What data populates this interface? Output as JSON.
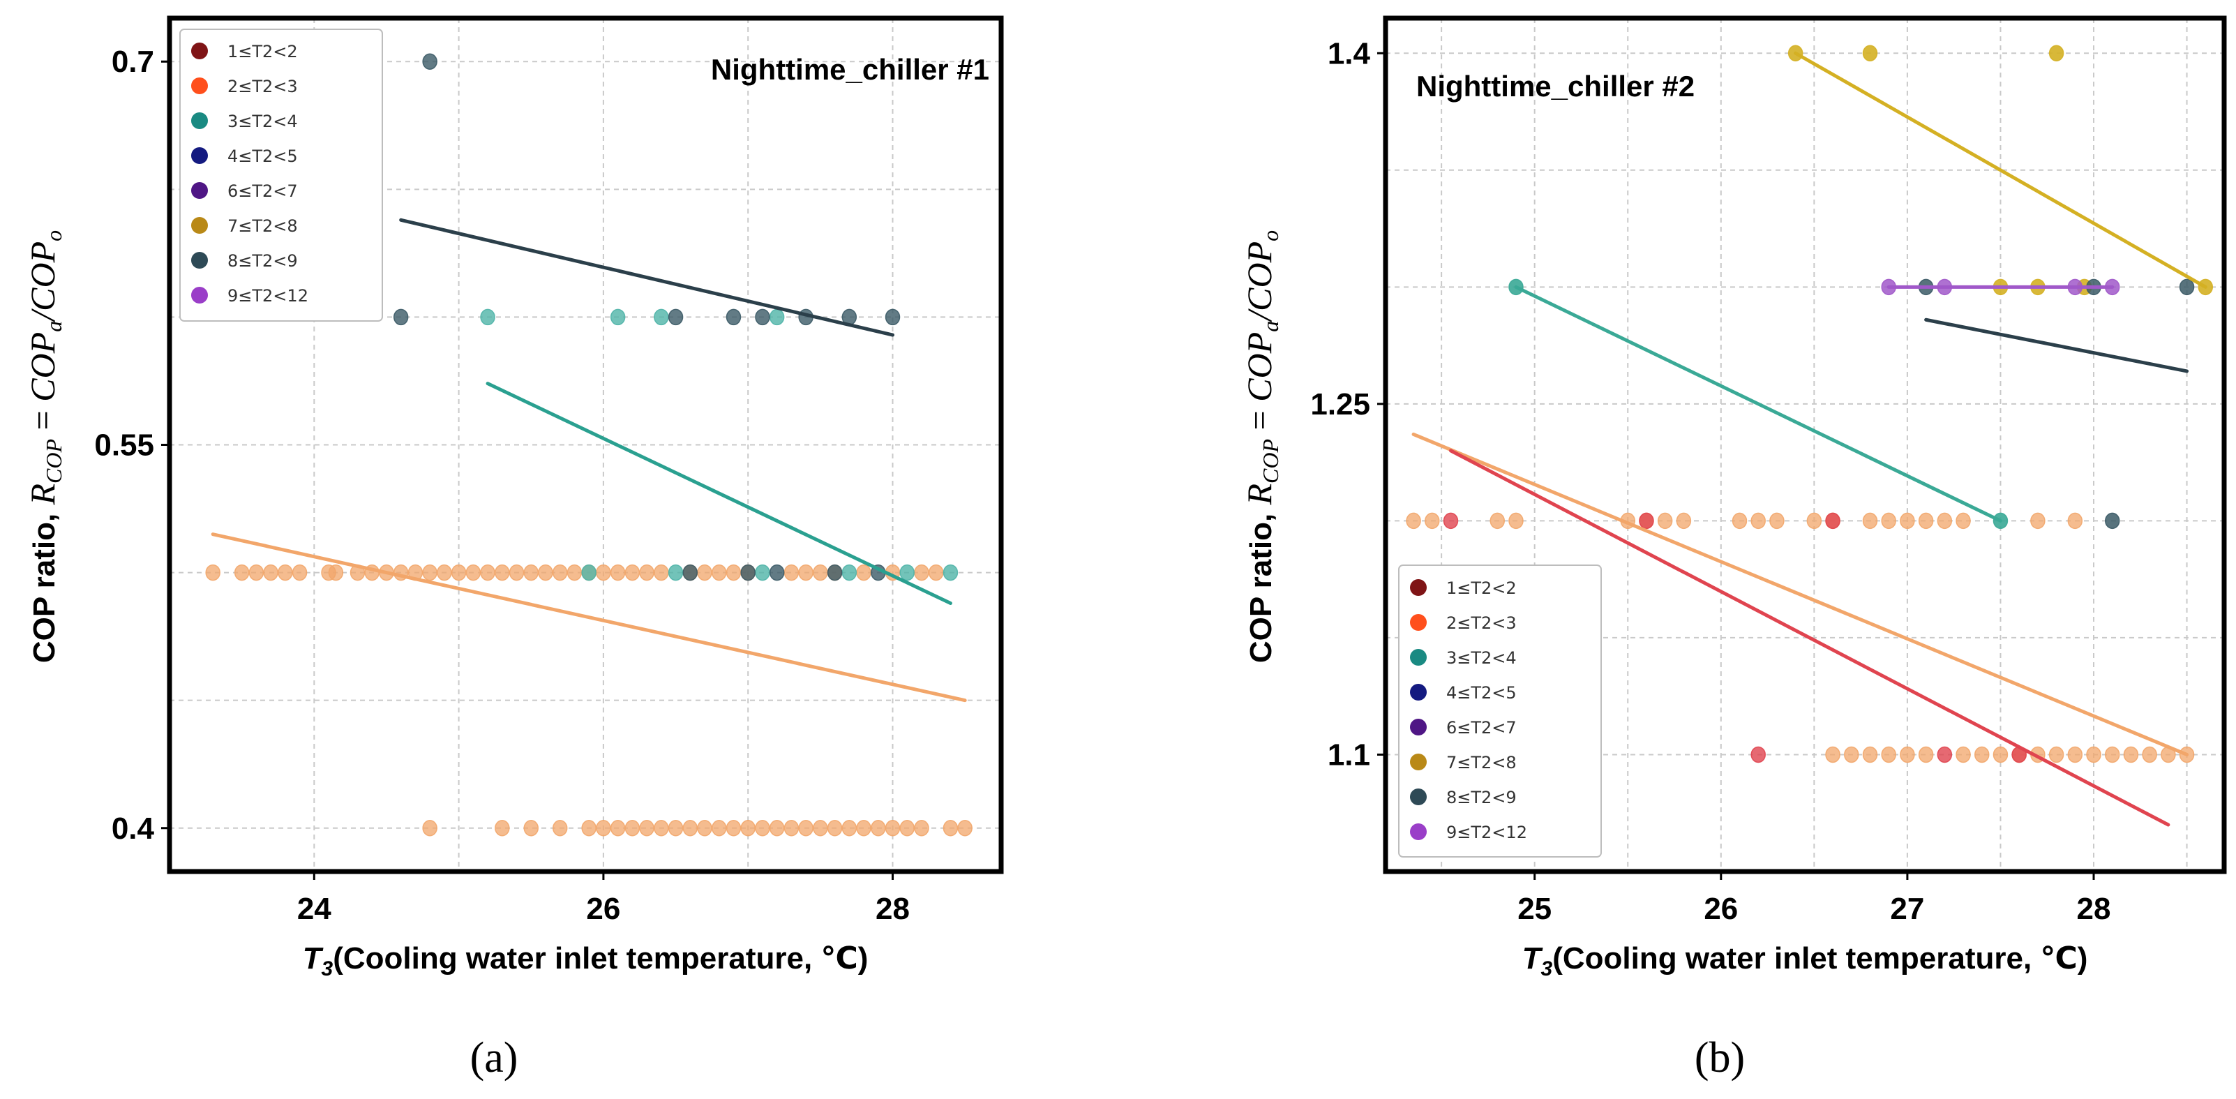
{
  "chart_data": [
    {
      "type": "scatter",
      "panel_label": "(a)",
      "title": "Nighttime_chiller #1",
      "xlabel": "T3(Cooling water inlet temperature, ℃)",
      "xlabel_italic": "T",
      "xlabel_sub": "3",
      "xlabel_rest": "(Cooling water inlet temperature, ℃)",
      "ylabel": "COP ratio, R_COP = COP_a/COP_o",
      "ylabel_prefix": "COP ratio, ",
      "ylabel_R": "R",
      "ylabel_Rsub": "COP",
      "ylabel_eq": " = ",
      "ylabel_A": "COP",
      "ylabel_Asub": "a",
      "ylabel_slash": "/",
      "ylabel_B": "COP",
      "ylabel_Bsub": "o",
      "xlim": [
        23.0,
        28.75
      ],
      "ylim": [
        0.383,
        0.717
      ],
      "xticks": [
        24,
        26,
        28
      ],
      "xtick_labels": [
        "24",
        "26",
        "28"
      ],
      "xgrid": [
        24,
        25,
        26,
        27,
        28
      ],
      "yticks": [
        0.4,
        0.55,
        0.7
      ],
      "ytick_labels": [
        "0.4",
        "0.55",
        "0.7"
      ],
      "ygrid": [
        0.4,
        0.45,
        0.5,
        0.55,
        0.6,
        0.65,
        0.7
      ],
      "legend_position": "top-left",
      "legend": [
        {
          "label": "1≤T2<2",
          "color": "#7f1416"
        },
        {
          "label": "2≤T2<3",
          "color": "#ff4f1c"
        },
        {
          "label": "3≤T2<4",
          "color": "#1a8a82"
        },
        {
          "label": "4≤T2<5",
          "color": "#141a80"
        },
        {
          "label": "6≤T2<7",
          "color": "#4f1685"
        },
        {
          "label": "7≤T2<8",
          "color": "#b98917"
        },
        {
          "label": "8≤T2<9",
          "color": "#2e4a56"
        },
        {
          "label": "9≤T2<12",
          "color": "#9a3ec8"
        }
      ],
      "series": [
        {
          "name": "2≤T2<3",
          "color": "#f2a66a",
          "alpha": 0.75,
          "points": [
            [
              23.3,
              0.5
            ],
            [
              23.5,
              0.5
            ],
            [
              23.6,
              0.5
            ],
            [
              23.7,
              0.5
            ],
            [
              23.8,
              0.5
            ],
            [
              23.9,
              0.5
            ],
            [
              24.1,
              0.5
            ],
            [
              24.15,
              0.5
            ],
            [
              24.3,
              0.5
            ],
            [
              24.4,
              0.5
            ],
            [
              24.5,
              0.5
            ],
            [
              24.6,
              0.5
            ],
            [
              24.7,
              0.5
            ],
            [
              24.8,
              0.5
            ],
            [
              24.9,
              0.5
            ],
            [
              25.0,
              0.5
            ],
            [
              25.1,
              0.5
            ],
            [
              25.2,
              0.5
            ],
            [
              25.3,
              0.5
            ],
            [
              25.4,
              0.5
            ],
            [
              25.5,
              0.5
            ],
            [
              25.6,
              0.5
            ],
            [
              25.7,
              0.5
            ],
            [
              25.8,
              0.5
            ],
            [
              25.9,
              0.5
            ],
            [
              26.0,
              0.5
            ],
            [
              26.1,
              0.5
            ],
            [
              26.2,
              0.5
            ],
            [
              26.3,
              0.5
            ],
            [
              26.4,
              0.5
            ],
            [
              26.6,
              0.5
            ],
            [
              26.7,
              0.5
            ],
            [
              26.8,
              0.5
            ],
            [
              26.9,
              0.5
            ],
            [
              27.0,
              0.5
            ],
            [
              27.3,
              0.5
            ],
            [
              27.4,
              0.5
            ],
            [
              27.5,
              0.5
            ],
            [
              27.6,
              0.5
            ],
            [
              27.8,
              0.5
            ],
            [
              28.0,
              0.5
            ],
            [
              28.2,
              0.5
            ],
            [
              28.3,
              0.5
            ],
            [
              24.8,
              0.4
            ],
            [
              25.3,
              0.4
            ],
            [
              25.5,
              0.4
            ],
            [
              25.7,
              0.4
            ],
            [
              25.9,
              0.4
            ],
            [
              26.0,
              0.4
            ],
            [
              26.1,
              0.4
            ],
            [
              26.2,
              0.4
            ],
            [
              26.3,
              0.4
            ],
            [
              26.4,
              0.4
            ],
            [
              26.5,
              0.4
            ],
            [
              26.6,
              0.4
            ],
            [
              26.7,
              0.4
            ],
            [
              26.8,
              0.4
            ],
            [
              26.9,
              0.4
            ],
            [
              27.0,
              0.4
            ],
            [
              27.1,
              0.4
            ],
            [
              27.2,
              0.4
            ],
            [
              27.3,
              0.4
            ],
            [
              27.4,
              0.4
            ],
            [
              27.5,
              0.4
            ],
            [
              27.6,
              0.4
            ],
            [
              27.7,
              0.4
            ],
            [
              27.8,
              0.4
            ],
            [
              27.9,
              0.4
            ],
            [
              28.0,
              0.4
            ],
            [
              28.1,
              0.4
            ],
            [
              28.2,
              0.4
            ],
            [
              28.4,
              0.4
            ],
            [
              28.5,
              0.4
            ]
          ]
        },
        {
          "name": "3≤T2<4",
          "color": "#4fb4a8",
          "alpha": 0.8,
          "points": [
            [
              25.2,
              0.6
            ],
            [
              26.1,
              0.6
            ],
            [
              26.4,
              0.6
            ],
            [
              27.2,
              0.6
            ],
            [
              25.9,
              0.5
            ],
            [
              26.5,
              0.5
            ],
            [
              27.1,
              0.5
            ],
            [
              27.7,
              0.5
            ],
            [
              28.1,
              0.5
            ],
            [
              28.4,
              0.5
            ]
          ]
        },
        {
          "name": "8≤T2<9",
          "color": "#3b5a66",
          "alpha": 0.8,
          "points": [
            [
              24.8,
              0.7
            ],
            [
              24.6,
              0.6
            ],
            [
              26.5,
              0.6
            ],
            [
              26.9,
              0.6
            ],
            [
              27.1,
              0.6
            ],
            [
              27.4,
              0.6
            ],
            [
              27.7,
              0.6
            ],
            [
              28.0,
              0.6
            ],
            [
              26.6,
              0.5
            ],
            [
              27.0,
              0.5
            ],
            [
              27.2,
              0.5
            ],
            [
              27.6,
              0.5
            ],
            [
              27.9,
              0.5
            ]
          ]
        }
      ],
      "fit_lines": [
        {
          "name": "2≤T2<3 fit",
          "color": "#f2a66a",
          "x": [
            23.3,
            28.5
          ],
          "y": [
            0.515,
            0.45
          ]
        },
        {
          "name": "3≤T2<4 fit",
          "color": "#2aa090",
          "x": [
            25.2,
            28.4
          ],
          "y": [
            0.574,
            0.488
          ]
        },
        {
          "name": "8≤T2<9 fit",
          "color": "#2b3f4a",
          "x": [
            24.6,
            28.0
          ],
          "y": [
            0.638,
            0.593
          ]
        }
      ]
    },
    {
      "type": "scatter",
      "panel_label": "(b)",
      "title": "Nighttime_chiller #2",
      "xlabel": "T3(Cooling water inlet temperature, ℃)",
      "xlabel_italic": "T",
      "xlabel_sub": "3",
      "xlabel_rest": "(Cooling water inlet temperature, ℃)",
      "ylabel": "COP ratio, R_COP = COP_a/COP_o",
      "ylabel_prefix": "COP ratio, ",
      "ylabel_R": "R",
      "ylabel_Rsub": "COP",
      "ylabel_eq": " = ",
      "ylabel_A": "COP",
      "ylabel_Asub": "a",
      "ylabel_slash": "/",
      "ylabel_B": "COP",
      "ylabel_Bsub": "o",
      "xlim": [
        24.2,
        28.7
      ],
      "ylim": [
        1.05,
        1.415
      ],
      "xticks": [
        25,
        26,
        27,
        28
      ],
      "xtick_labels": [
        "25",
        "26",
        "27",
        "28"
      ],
      "xgrid": [
        24.5,
        25,
        25.5,
        26,
        26.5,
        27,
        27.5,
        28,
        28.5
      ],
      "yticks": [
        1.1,
        1.25,
        1.4
      ],
      "ytick_labels": [
        "1.1",
        "1.25",
        "1.4"
      ],
      "ygrid": [
        1.1,
        1.15,
        1.2,
        1.25,
        1.3,
        1.35,
        1.4
      ],
      "legend_position": "bottom-left",
      "legend": [
        {
          "label": "1≤T2<2",
          "color": "#7f1416"
        },
        {
          "label": "2≤T2<3",
          "color": "#ff4f1c"
        },
        {
          "label": "3≤T2<4",
          "color": "#1a8a82"
        },
        {
          "label": "4≤T2<5",
          "color": "#141a80"
        },
        {
          "label": "6≤T2<7",
          "color": "#4f1685"
        },
        {
          "label": "7≤T2<8",
          "color": "#b98917"
        },
        {
          "label": "8≤T2<9",
          "color": "#2e4a56"
        },
        {
          "label": "9≤T2<12",
          "color": "#9a3ec8"
        }
      ],
      "series": [
        {
          "name": "2≤T2<3",
          "color": "#f2a66a",
          "alpha": 0.75,
          "points": [
            [
              24.35,
              1.2
            ],
            [
              24.45,
              1.2
            ],
            [
              24.8,
              1.2
            ],
            [
              24.9,
              1.2
            ],
            [
              25.5,
              1.2
            ],
            [
              25.6,
              1.2
            ],
            [
              25.7,
              1.2
            ],
            [
              25.8,
              1.2
            ],
            [
              26.1,
              1.2
            ],
            [
              26.2,
              1.2
            ],
            [
              26.3,
              1.2
            ],
            [
              26.5,
              1.2
            ],
            [
              26.6,
              1.2
            ],
            [
              26.8,
              1.2
            ],
            [
              26.9,
              1.2
            ],
            [
              27.0,
              1.2
            ],
            [
              27.1,
              1.2
            ],
            [
              27.2,
              1.2
            ],
            [
              27.3,
              1.2
            ],
            [
              27.7,
              1.2
            ],
            [
              27.9,
              1.2
            ],
            [
              26.6,
              1.1
            ],
            [
              26.7,
              1.1
            ],
            [
              26.8,
              1.1
            ],
            [
              26.9,
              1.1
            ],
            [
              27.0,
              1.1
            ],
            [
              27.1,
              1.1
            ],
            [
              27.3,
              1.1
            ],
            [
              27.4,
              1.1
            ],
            [
              27.5,
              1.1
            ],
            [
              27.6,
              1.1
            ],
            [
              27.7,
              1.1
            ],
            [
              27.8,
              1.1
            ],
            [
              27.9,
              1.1
            ],
            [
              28.0,
              1.1
            ],
            [
              28.1,
              1.1
            ],
            [
              28.2,
              1.1
            ],
            [
              28.3,
              1.1
            ],
            [
              28.4,
              1.1
            ],
            [
              28.5,
              1.1
            ]
          ]
        },
        {
          "name": "1≤T2<2",
          "color": "#e0444f",
          "alpha": 0.8,
          "points": [
            [
              24.55,
              1.2
            ],
            [
              25.6,
              1.2
            ],
            [
              26.2,
              1.1
            ],
            [
              26.6,
              1.2
            ],
            [
              27.2,
              1.1
            ],
            [
              27.6,
              1.1
            ]
          ]
        },
        {
          "name": "3≤T2<4",
          "color": "#3aa996",
          "alpha": 0.9,
          "points": [
            [
              24.9,
              1.3
            ],
            [
              27.5,
              1.2
            ]
          ]
        },
        {
          "name": "7≤T2<8",
          "color": "#d4b023",
          "alpha": 0.9,
          "points": [
            [
              26.4,
              1.4
            ],
            [
              26.8,
              1.4
            ],
            [
              27.8,
              1.4
            ],
            [
              27.5,
              1.3
            ],
            [
              27.7,
              1.3
            ],
            [
              27.95,
              1.3
            ],
            [
              28.6,
              1.3
            ]
          ]
        },
        {
          "name": "9≤T2<12",
          "color": "#a058c9",
          "alpha": 0.85,
          "points": [
            [
              26.9,
              1.3
            ],
            [
              27.2,
              1.3
            ],
            [
              27.9,
              1.3
            ],
            [
              28.1,
              1.3
            ]
          ]
        },
        {
          "name": "8≤T2<9",
          "color": "#3b5a66",
          "alpha": 0.85,
          "points": [
            [
              27.1,
              1.3
            ],
            [
              28.0,
              1.3
            ],
            [
              28.5,
              1.3
            ],
            [
              28.1,
              1.2
            ]
          ]
        }
      ],
      "fit_lines": [
        {
          "name": "2≤T2<3 fit",
          "color": "#f2a66a",
          "x": [
            24.35,
            28.5
          ],
          "y": [
            1.237,
            1.1
          ]
        },
        {
          "name": "1≤T2<2 fit",
          "color": "#e0444f",
          "x": [
            24.55,
            28.4
          ],
          "y": [
            1.23,
            1.07
          ]
        },
        {
          "name": "3≤T2<4 fit",
          "color": "#3aa996",
          "x": [
            24.9,
            27.5
          ],
          "y": [
            1.3,
            1.2
          ]
        },
        {
          "name": "7≤T2<8 fit",
          "color": "#d4b023",
          "x": [
            26.4,
            28.6
          ],
          "y": [
            1.4,
            1.3
          ]
        },
        {
          "name": "9≤T2<12 fit",
          "color": "#a058c9",
          "x": [
            26.9,
            28.1
          ],
          "y": [
            1.3,
            1.3
          ]
        },
        {
          "name": "8≤T2<9 fit",
          "color": "#2b3f4a",
          "x": [
            27.1,
            28.5
          ],
          "y": [
            1.286,
            1.264
          ]
        }
      ]
    }
  ]
}
